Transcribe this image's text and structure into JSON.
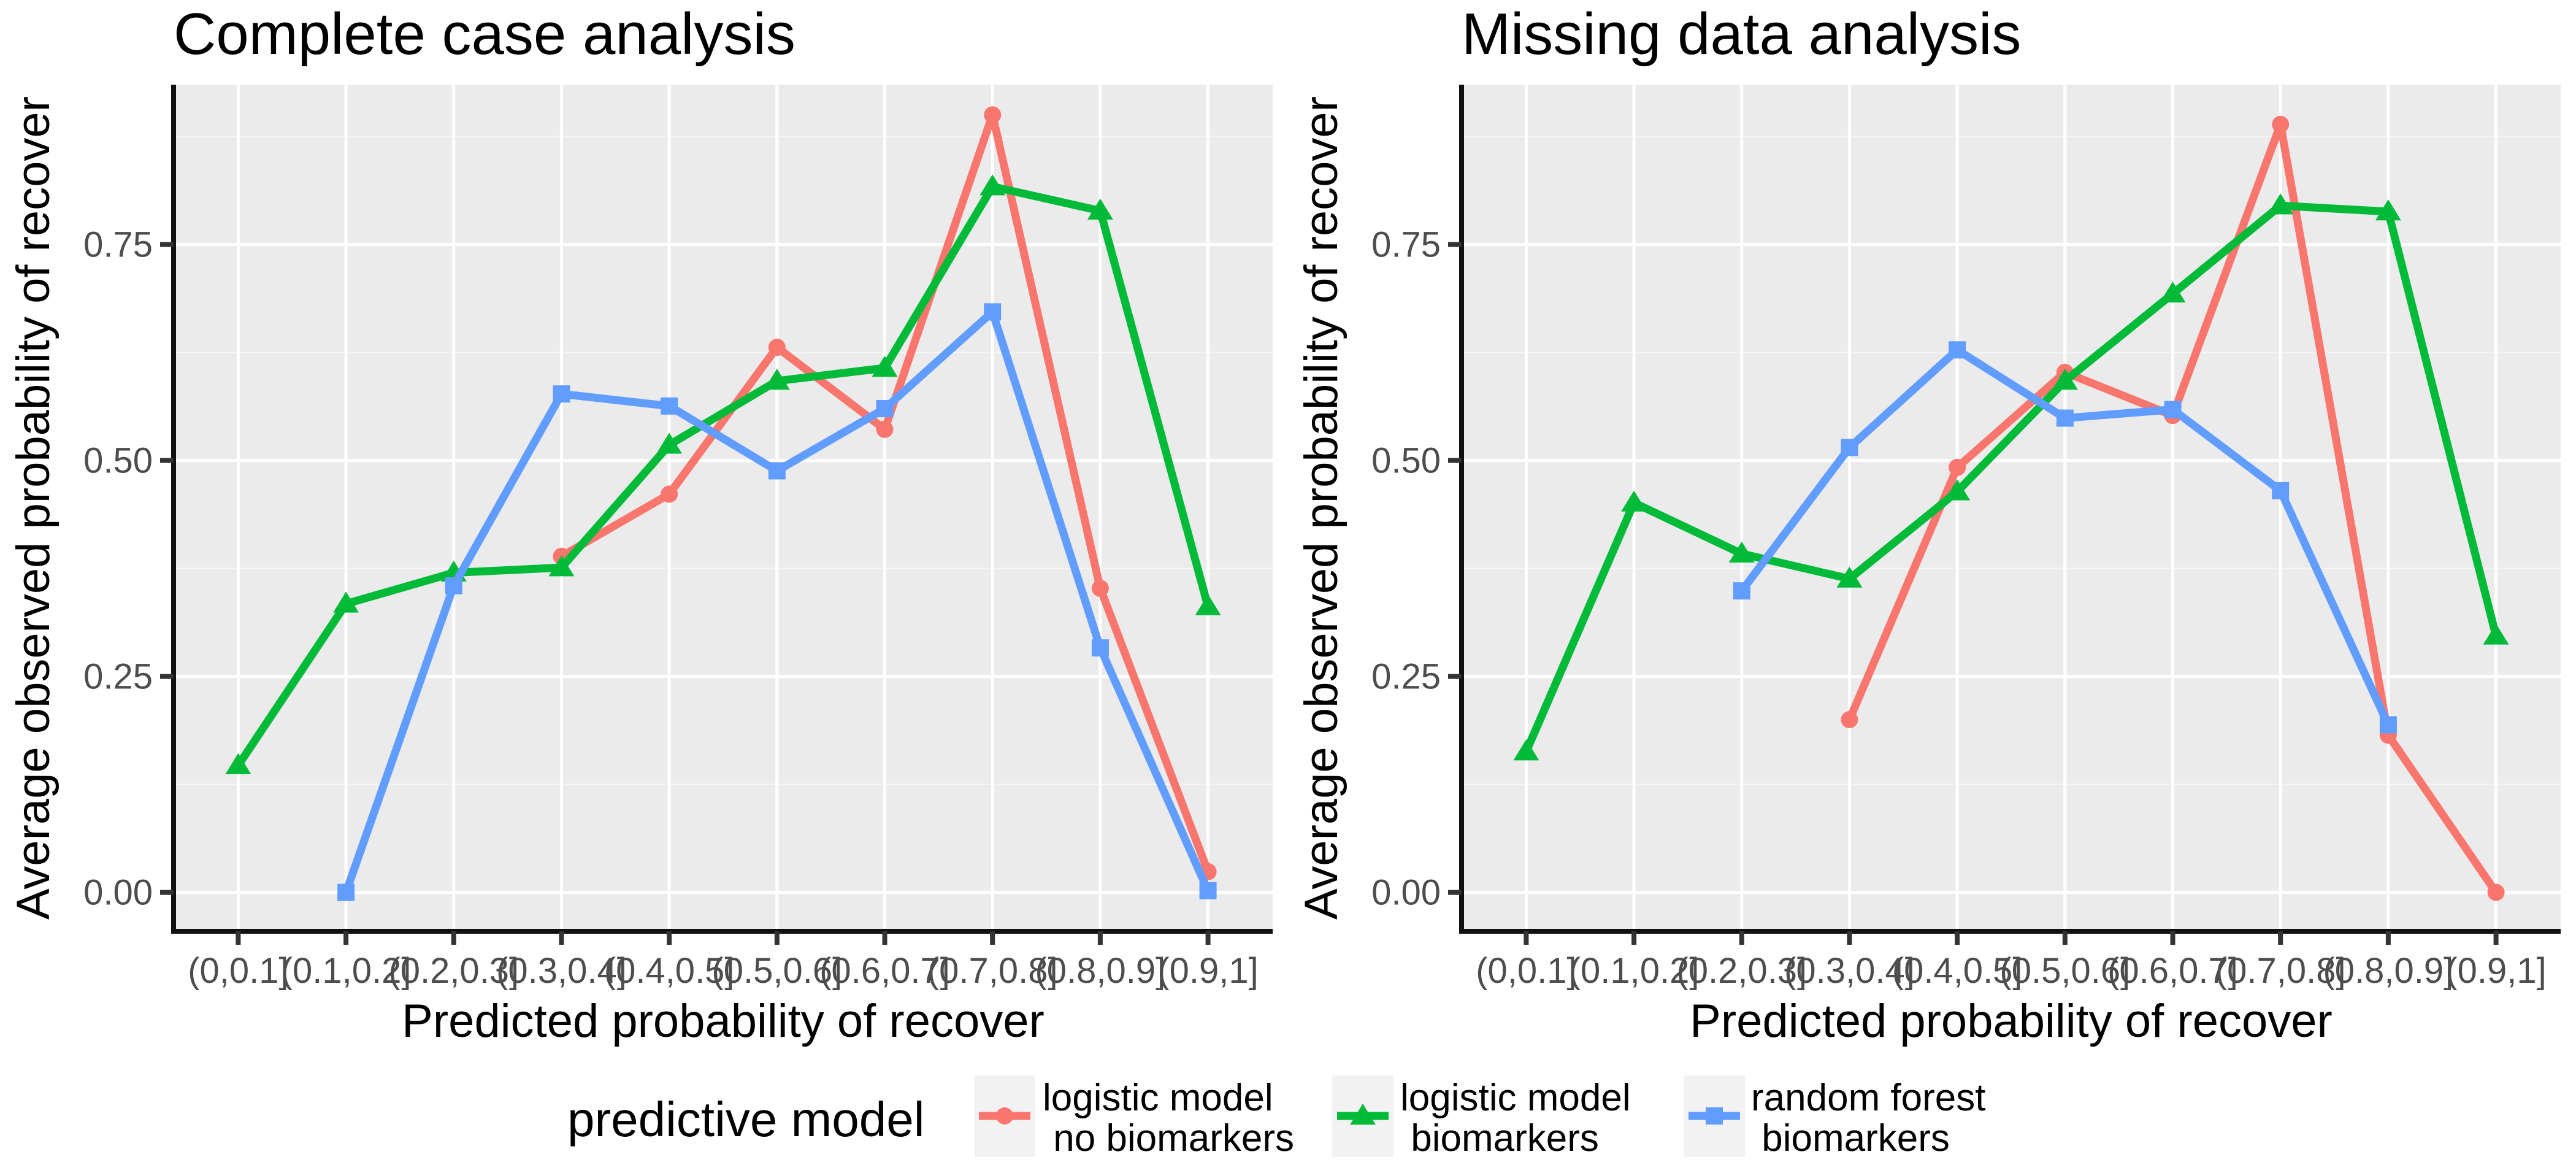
{
  "chart_data": [
    {
      "type": "line",
      "title": "Complete case analysis",
      "xlabel": "Predicted probability of recover",
      "ylabel": "Average observed probability of recover",
      "categories": [
        "(0,0.1]",
        "(0.1,0.2]",
        "(0.2,0.3]",
        "(0.3,0.4]",
        "(0.4,0.5]",
        "(0.5,0.6]",
        "(0.6,0.7]",
        "(0.7,0.8]",
        "(0.8,0.9]",
        "(0.9,1]"
      ],
      "yticks": [
        0.0,
        0.25,
        0.5,
        0.75
      ],
      "ytick_labels": [
        "0.00",
        "0.25",
        "0.50",
        "0.75"
      ],
      "ylim": [
        -0.045,
        0.935
      ],
      "grid": true,
      "series": [
        {
          "name": "logistic model\n no biomarkers",
          "color": "#F8766D",
          "marker": "circle",
          "values": [
            null,
            null,
            null,
            0.389,
            0.461,
            0.631,
            0.536,
            0.9,
            0.352,
            0.024
          ]
        },
        {
          "name": "logistic model\n biomarkers",
          "color": "#00BA38",
          "marker": "triangle",
          "values": [
            0.147,
            0.334,
            0.37,
            0.376,
            0.518,
            0.592,
            0.607,
            0.817,
            0.789,
            0.331
          ]
        },
        {
          "name": "random forest\n biomarkers",
          "color": "#619CFF",
          "marker": "square",
          "values": [
            null,
            0.0,
            0.355,
            0.577,
            0.563,
            0.488,
            0.56,
            0.672,
            0.283,
            0.002
          ]
        }
      ]
    },
    {
      "type": "line",
      "title": "Missing data analysis",
      "xlabel": "Predicted probability of recover",
      "ylabel": "Average observed probability of recover",
      "categories": [
        "(0,0.1]",
        "(0.1,0.2]",
        "(0.2,0.3]",
        "(0.3,0.4]",
        "(0.4,0.5]",
        "(0.5,0.6]",
        "(0.6,0.7]",
        "(0.7,0.8]",
        "(0.8,0.9]",
        "(0.9,1]"
      ],
      "yticks": [
        0.0,
        0.25,
        0.5,
        0.75
      ],
      "ytick_labels": [
        "0.00",
        "0.25",
        "0.50",
        "0.75"
      ],
      "ylim": [
        -0.045,
        0.935
      ],
      "grid": true,
      "series": [
        {
          "name": "logistic model\n no biomarkers",
          "color": "#F8766D",
          "marker": "circle",
          "values": [
            null,
            null,
            null,
            0.2,
            0.492,
            0.602,
            0.552,
            0.889,
            0.182,
            0.0
          ]
        },
        {
          "name": "logistic model\n biomarkers",
          "color": "#00BA38",
          "marker": "triangle",
          "values": [
            0.163,
            0.451,
            0.392,
            0.363,
            0.464,
            0.592,
            0.693,
            0.795,
            0.788,
            0.297
          ]
        },
        {
          "name": "random forest\n biomarkers",
          "color": "#619CFF",
          "marker": "square",
          "values": [
            null,
            null,
            0.349,
            0.515,
            0.628,
            0.549,
            0.559,
            0.465,
            0.194,
            null
          ]
        }
      ]
    }
  ],
  "legend": {
    "title": "predictive model",
    "placement": "bottom",
    "items": [
      {
        "line1": "logistic model",
        "line2": " no biomarkers",
        "color": "#F8766D",
        "marker": "circle"
      },
      {
        "line1": "logistic model",
        "line2": " biomarkers",
        "color": "#00BA38",
        "marker": "triangle"
      },
      {
        "line1": "random forest",
        "line2": " biomarkers",
        "color": "#619CFF",
        "marker": "square"
      }
    ]
  }
}
